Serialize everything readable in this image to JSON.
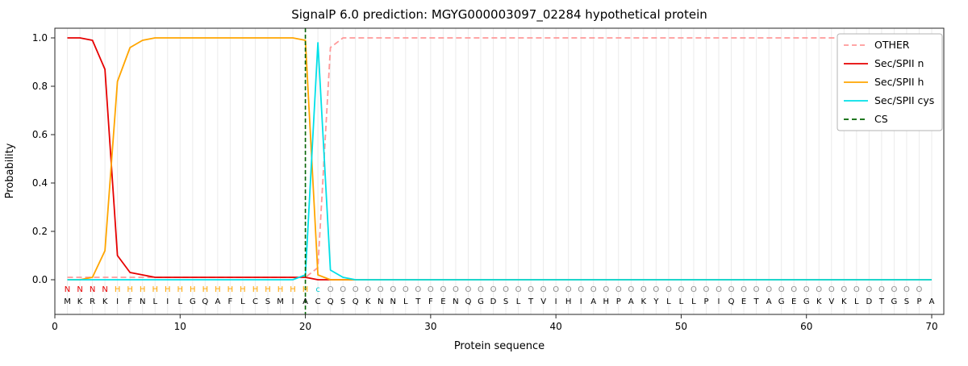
{
  "chart_data": {
    "type": "line",
    "title": "SignalP 6.0 prediction: MGYG000003097_02284 hypothetical protein",
    "xlabel": "Protein sequence",
    "ylabel": "Probability",
    "xlim": [
      0,
      70
    ],
    "ylim_display": [
      -0.14,
      1.04
    ],
    "x_ticks": [
      0,
      10,
      20,
      30,
      40,
      50,
      60,
      70
    ],
    "y_ticks": [
      "0.0",
      "0.2",
      "0.4",
      "0.6",
      "0.8",
      "1.0"
    ],
    "grid": "light vertical gridline at every residue position 1-70",
    "legend_position": "upper-right",
    "legend": [
      "OTHER",
      "Sec/SPII n",
      "Sec/SPII h",
      "Sec/SPII cys",
      "CS"
    ],
    "x": [
      1,
      2,
      3,
      4,
      5,
      6,
      7,
      8,
      9,
      10,
      11,
      12,
      13,
      14,
      15,
      16,
      17,
      18,
      19,
      20,
      21,
      22,
      23,
      24,
      25,
      26,
      27,
      28,
      29,
      30,
      31,
      32,
      33,
      34,
      35,
      36,
      37,
      38,
      39,
      40,
      41,
      42,
      43,
      44,
      45,
      46,
      47,
      48,
      49,
      50,
      51,
      52,
      53,
      54,
      55,
      56,
      57,
      58,
      59,
      60,
      61,
      62,
      63,
      64,
      65,
      66,
      67,
      68,
      69,
      70
    ],
    "series": [
      {
        "key": "other",
        "label": "OTHER",
        "color": "#ff9999",
        "dash": true,
        "values": [
          0.01,
          0.01,
          0.01,
          0.01,
          0.01,
          0.01,
          0.01,
          0.01,
          0.01,
          0.01,
          0.01,
          0.01,
          0.01,
          0.01,
          0.01,
          0.01,
          0.01,
          0.01,
          0.01,
          0.01,
          0.05,
          0.96,
          1,
          1,
          1,
          1,
          1,
          1,
          1,
          1,
          1,
          1,
          1,
          1,
          1,
          1,
          1,
          1,
          1,
          1,
          1,
          1,
          1,
          1,
          1,
          1,
          1,
          1,
          1,
          1,
          1,
          1,
          1,
          1,
          1,
          1,
          1,
          1,
          1,
          1,
          1,
          1,
          1,
          1,
          1,
          1,
          1,
          1,
          1,
          1
        ]
      },
      {
        "key": "sec-spii-n",
        "label": "Sec/SPII n",
        "color": "#e60000",
        "dash": false,
        "values": [
          1,
          1,
          0.99,
          0.87,
          0.1,
          0.03,
          0.02,
          0.01,
          0.01,
          0.01,
          0.01,
          0.01,
          0.01,
          0.01,
          0.01,
          0.01,
          0.01,
          0.01,
          0.01,
          0.01,
          0,
          0,
          0,
          0,
          0,
          0,
          0,
          0,
          0,
          0,
          0,
          0,
          0,
          0,
          0,
          0,
          0,
          0,
          0,
          0,
          0,
          0,
          0,
          0,
          0,
          0,
          0,
          0,
          0,
          0,
          0,
          0,
          0,
          0,
          0,
          0,
          0,
          0,
          0,
          0,
          0,
          0,
          0,
          0,
          0,
          0,
          0,
          0,
          0,
          0
        ]
      },
      {
        "key": "sec-spii-h",
        "label": "Sec/SPII h",
        "color": "#ffa500",
        "dash": false,
        "values": [
          0,
          0,
          0.01,
          0.12,
          0.82,
          0.96,
          0.99,
          1,
          1,
          1,
          1,
          1,
          1,
          1,
          1,
          1,
          1,
          1,
          1,
          0.99,
          0.02,
          0,
          0,
          0,
          0,
          0,
          0,
          0,
          0,
          0,
          0,
          0,
          0,
          0,
          0,
          0,
          0,
          0,
          0,
          0,
          0,
          0,
          0,
          0,
          0,
          0,
          0,
          0,
          0,
          0,
          0,
          0,
          0,
          0,
          0,
          0,
          0,
          0,
          0,
          0,
          0,
          0,
          0,
          0,
          0,
          0,
          0,
          0,
          0,
          0
        ]
      },
      {
        "key": "sec-spii-cys",
        "label": "Sec/SPII cys",
        "color": "#00e0e8",
        "dash": false,
        "values": [
          0,
          0,
          0,
          0,
          0,
          0,
          0,
          0,
          0,
          0,
          0,
          0,
          0,
          0,
          0,
          0,
          0,
          0,
          0,
          0.02,
          0.98,
          0.04,
          0.01,
          0,
          0,
          0,
          0,
          0,
          0,
          0,
          0,
          0,
          0,
          0,
          0,
          0,
          0,
          0,
          0,
          0,
          0,
          0,
          0,
          0,
          0,
          0,
          0,
          0,
          0,
          0,
          0,
          0,
          0,
          0,
          0,
          0,
          0,
          0,
          0,
          0,
          0,
          0,
          0,
          0,
          0,
          0,
          0,
          0,
          0,
          0
        ]
      }
    ],
    "cs_line": {
      "label": "CS",
      "position": 20,
      "color": "#006400",
      "dash": true
    },
    "sequence": "MKRKIFNLILGQAFLCSMIACQSQKNNLTFENQGDSLTVIHIAHPAKYLLLPIQETAGEGKVKLDTGSPA",
    "state_labels": "NNNNHHHHHHHHHHHHHHHHcOOOOOOOOOOOOOOOOOOOOOOOOOOOOOOOOOOOOOOOOOOOOOOOO",
    "state_colors": {
      "N": "#e60000",
      "H": "#ffa500",
      "c": "#00c8d0",
      "O": "#8c8c8c"
    },
    "sequence_color": "#000000"
  }
}
